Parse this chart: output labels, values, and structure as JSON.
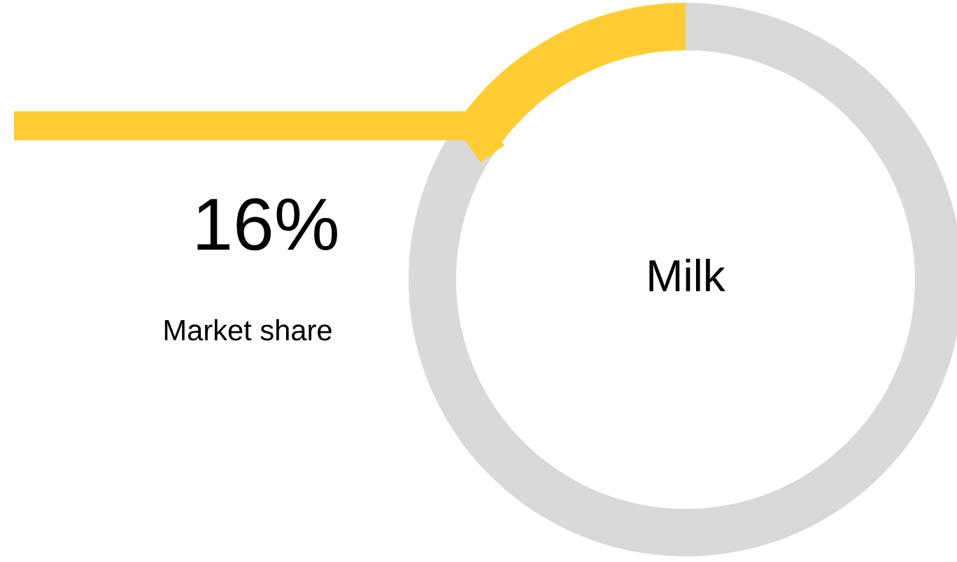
{
  "chart_data": {
    "type": "donut",
    "title": "Milk",
    "categories": [
      null,
      null
    ],
    "values": [
      16,
      84
    ],
    "colors": [
      "#ffcd33",
      "#d9d9d9"
    ],
    "annotations": [
      "16%",
      "Market share"
    ],
    "legend": false
  }
}
